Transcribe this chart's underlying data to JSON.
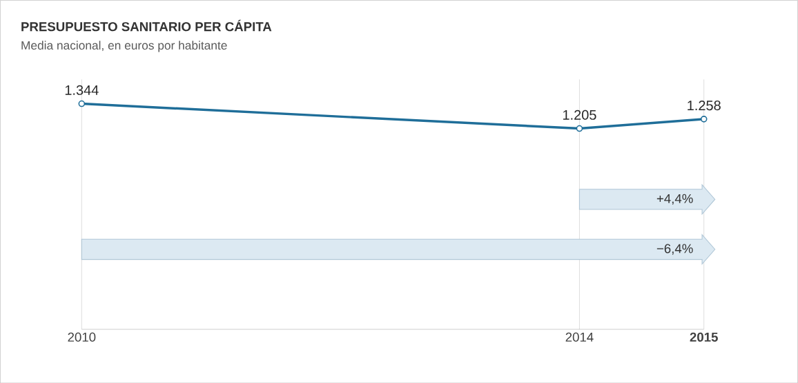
{
  "chart_data": {
    "type": "line",
    "title": "PRESUPUESTO SANITARIO PER CÁPITA",
    "subtitle": "Media nacional, en euros por habitante",
    "x": [
      2010,
      2014,
      2015
    ],
    "values": [
      1344,
      1205,
      1258
    ],
    "value_labels": [
      "1.344",
      "1.205",
      "1.258"
    ],
    "color": "#1f6e99",
    "marker": "circle",
    "line_style": "solid",
    "xlim": [
      2010,
      2015
    ],
    "xticks": [
      2010,
      2014,
      2015
    ],
    "ylim": [
      80,
      1480
    ],
    "grid": "x",
    "tick_labels": "x",
    "annotations": [
      "+4,4%",
      "−6,4%"
    ]
  }
}
